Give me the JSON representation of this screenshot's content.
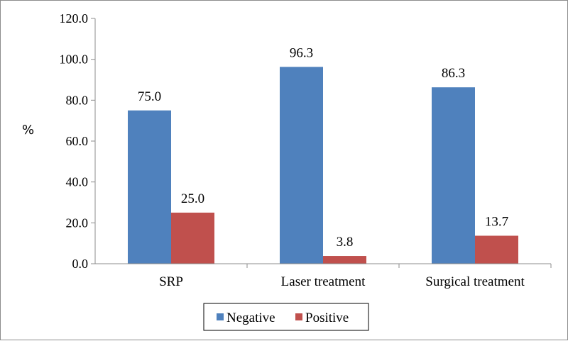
{
  "chart_data": {
    "type": "bar",
    "title": "",
    "xlabel": "",
    "ylabel": "%",
    "ylim": [
      0,
      120
    ],
    "yticks": [
      "0.0",
      "20.0",
      "40.0",
      "60.0",
      "80.0",
      "100.0",
      "120.0"
    ],
    "categories": [
      "SRP",
      "Laser treatment",
      "Surgical treatment"
    ],
    "series": [
      {
        "name": "Negative",
        "values": [
          75.0,
          96.3,
          86.3
        ],
        "labels": [
          "75.0",
          "96.3",
          "86.3"
        ],
        "color": "#4f81bd"
      },
      {
        "name": "Positive",
        "values": [
          25.0,
          3.8,
          13.7
        ],
        "labels": [
          "25.0",
          "3.8",
          "13.7"
        ],
        "color": "#c0504d"
      }
    ],
    "grid": false,
    "legend_position": "bottom"
  }
}
